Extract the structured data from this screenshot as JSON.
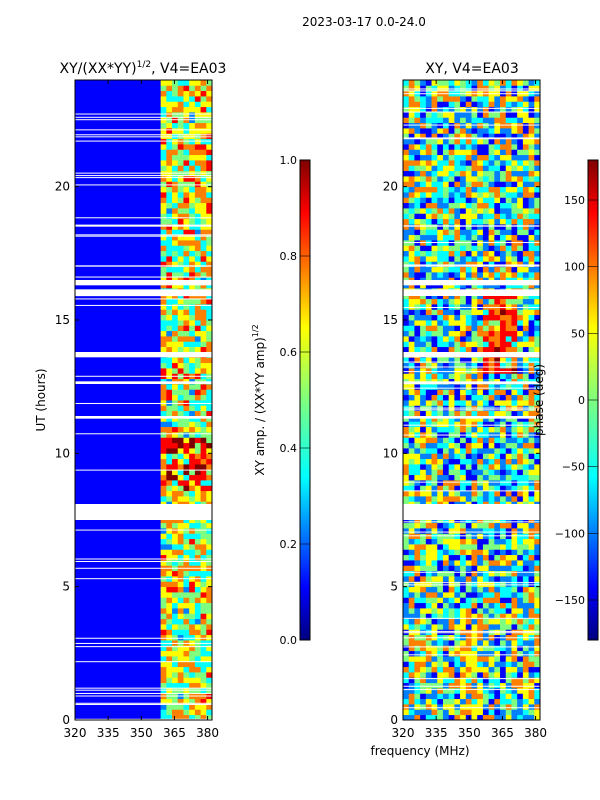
{
  "figure": {
    "suptitle": "2023-03-17 0.0-24.0",
    "xlabel": "frequency (MHz)"
  },
  "colors": {
    "jet": [
      "#00007f",
      "#0000ff",
      "#007fff",
      "#00ffff",
      "#7fff7f",
      "#ffff00",
      "#ff7f00",
      "#ff0000",
      "#7f0000"
    ],
    "frame": "#000000",
    "gap": "#ffffff"
  },
  "chart_data": [
    {
      "type": "heatmap",
      "title": "XY/(XX*YY)^1/2, V4=EA03",
      "title_main": "XY/(XX*YY)",
      "title_exp": "1/2",
      "title_tail": ", V4=EA03",
      "xlabel": "frequency (MHz)",
      "ylabel": "UT (hours)",
      "xlim": [
        320,
        382
      ],
      "ylim": [
        0,
        24
      ],
      "xticks": [
        320,
        335,
        350,
        365,
        380
      ],
      "yticks": [
        0,
        5,
        10,
        15,
        20
      ],
      "colorbar": {
        "label": "XY amp. / (XX*YY amp)^1/2",
        "label_main": "XY amp. / (XX*YY amp)",
        "label_exp": "1/2",
        "range": [
          0.0,
          1.0
        ],
        "ticks": [
          "0.0",
          "0.2",
          "0.4",
          "0.6",
          "0.8",
          "1.0"
        ],
        "tick_values": [
          0.0,
          0.2,
          0.4,
          0.6,
          0.8,
          1.0
        ]
      },
      "gaps_hours": [
        [
          7.5,
          8.1
        ],
        [
          15.9,
          16.15
        ],
        [
          16.3,
          16.5
        ],
        [
          13.6,
          13.8
        ],
        [
          11.3,
          11.4
        ],
        [
          12.6,
          12.7
        ],
        [
          17.0,
          17.05
        ],
        [
          18.5,
          18.55
        ]
      ],
      "notes": "Low amplitude (~0.1) below 359 MHz; high amplitude (0.3-0.9) striped bands between 359 and 380 MHz"
    },
    {
      "type": "heatmap",
      "title": "XY, V4=EA03",
      "xlabel": "frequency (MHz)",
      "xlim": [
        320,
        382
      ],
      "ylim": [
        0,
        24
      ],
      "xticks": [
        320,
        335,
        350,
        365,
        380
      ],
      "yticks": [
        0,
        5,
        10,
        15,
        20
      ],
      "colorbar": {
        "label": "phase (deg)",
        "range": [
          -180,
          180
        ],
        "ticks": [
          "150",
          "100",
          "50",
          "0",
          "−50",
          "−100",
          "−150"
        ],
        "tick_values": [
          150,
          100,
          50,
          0,
          -50,
          -100,
          -150
        ]
      },
      "gaps_hours": [
        [
          7.5,
          8.1
        ],
        [
          15.9,
          16.15
        ],
        [
          16.3,
          16.5
        ],
        [
          13.6,
          13.8
        ],
        [
          11.3,
          11.4
        ],
        [
          12.6,
          12.7
        ],
        [
          17.0,
          17.05
        ],
        [
          18.5,
          18.55
        ]
      ],
      "notes": "Phase mostly noisy across the band with patches near +100 deg around 13-16 h and near 350-365 MHz"
    }
  ]
}
